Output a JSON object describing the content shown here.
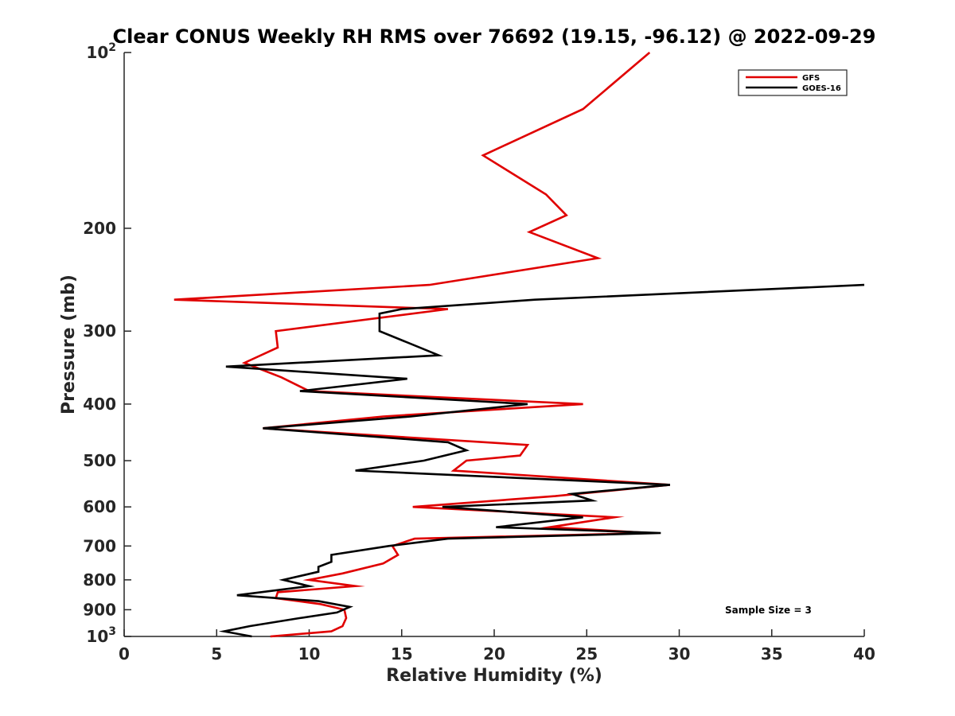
{
  "chart_data": {
    "type": "line",
    "title": "Clear CONUS Weekly RH RMS over 76692 (19.15, -96.12) @ 2022-09-29",
    "xlabel": "Relative Humidity (%)",
    "ylabel": "Pressure (mb)",
    "xlim": [
      0,
      40
    ],
    "ylim": [
      100,
      1000
    ],
    "yscale": "log",
    "y_reversed": true,
    "x_ticks": [
      0,
      5,
      10,
      15,
      20,
      25,
      30,
      35,
      40
    ],
    "x_tick_labels": [
      "0",
      "5",
      "10",
      "15",
      "20",
      "25",
      "30",
      "35",
      "40"
    ],
    "y_ticks": [
      100,
      200,
      300,
      400,
      500,
      600,
      700,
      800,
      900,
      1000
    ],
    "y_tick_labels": [
      {
        "base": "10",
        "exp": "2"
      },
      {
        "text": "200"
      },
      {
        "text": "300"
      },
      {
        "text": "400"
      },
      {
        "text": "500"
      },
      {
        "text": "600"
      },
      {
        "text": "700"
      },
      {
        "text": "800"
      },
      {
        "text": "900"
      },
      {
        "base": "10",
        "exp": "3"
      }
    ],
    "legend_position": "top-right",
    "annotation": "Sample Size = 3",
    "series": [
      {
        "name": "GFS",
        "color": "#e00000",
        "points": [
          [
            28.4,
            100
          ],
          [
            24.8,
            125
          ],
          [
            19.4,
            150
          ],
          [
            22.8,
            175
          ],
          [
            23.9,
            190
          ],
          [
            21.9,
            203
          ],
          [
            25.6,
            225
          ],
          [
            16.5,
            250
          ],
          [
            2.7,
            265
          ],
          [
            17.5,
            275
          ],
          [
            8.2,
            300
          ],
          [
            8.3,
            320
          ],
          [
            6.5,
            340
          ],
          [
            8.5,
            360
          ],
          [
            10.0,
            380
          ],
          [
            24.8,
            400
          ],
          [
            14.0,
            420
          ],
          [
            7.5,
            440
          ],
          [
            21.8,
            470
          ],
          [
            21.4,
            490
          ],
          [
            18.5,
            500
          ],
          [
            17.8,
            520
          ],
          [
            29.5,
            550
          ],
          [
            23.3,
            575
          ],
          [
            15.6,
            600
          ],
          [
            26.5,
            625
          ],
          [
            23.0,
            650
          ],
          [
            28.5,
            665
          ],
          [
            15.7,
            680
          ],
          [
            14.5,
            700
          ],
          [
            14.8,
            725
          ],
          [
            14.0,
            750
          ],
          [
            11.8,
            780
          ],
          [
            10.0,
            800
          ],
          [
            12.5,
            820
          ],
          [
            8.3,
            840
          ],
          [
            8.2,
            860
          ],
          [
            10.6,
            880
          ],
          [
            11.9,
            900
          ],
          [
            12.0,
            930
          ],
          [
            11.8,
            960
          ],
          [
            11.2,
            980
          ],
          [
            7.9,
            1000
          ]
        ]
      },
      {
        "name": "GOES-16",
        "color": "#000000",
        "points": [
          [
            40.0,
            250
          ],
          [
            22.2,
            265
          ],
          [
            15.0,
            275
          ],
          [
            13.8,
            280
          ],
          [
            13.8,
            300
          ],
          [
            17.0,
            330
          ],
          [
            5.5,
            345
          ],
          [
            15.3,
            362
          ],
          [
            9.5,
            380
          ],
          [
            21.8,
            400
          ],
          [
            15.5,
            420
          ],
          [
            7.5,
            440
          ],
          [
            17.5,
            465
          ],
          [
            18.5,
            480
          ],
          [
            16.2,
            500
          ],
          [
            12.5,
            520
          ],
          [
            29.5,
            550
          ],
          [
            24.2,
            570
          ],
          [
            25.3,
            585
          ],
          [
            17.2,
            600
          ],
          [
            24.8,
            625
          ],
          [
            20.1,
            650
          ],
          [
            29.0,
            665
          ],
          [
            17.5,
            680
          ],
          [
            14.3,
            700
          ],
          [
            11.2,
            725
          ],
          [
            11.2,
            745
          ],
          [
            10.5,
            760
          ],
          [
            10.5,
            775
          ],
          [
            8.6,
            800
          ],
          [
            10.0,
            820
          ],
          [
            6.1,
            850
          ],
          [
            10.5,
            870
          ],
          [
            12.2,
            890
          ],
          [
            11.5,
            910
          ],
          [
            9.5,
            930
          ],
          [
            6.8,
            960
          ],
          [
            5.4,
            980
          ],
          [
            6.9,
            1000
          ]
        ]
      }
    ]
  }
}
